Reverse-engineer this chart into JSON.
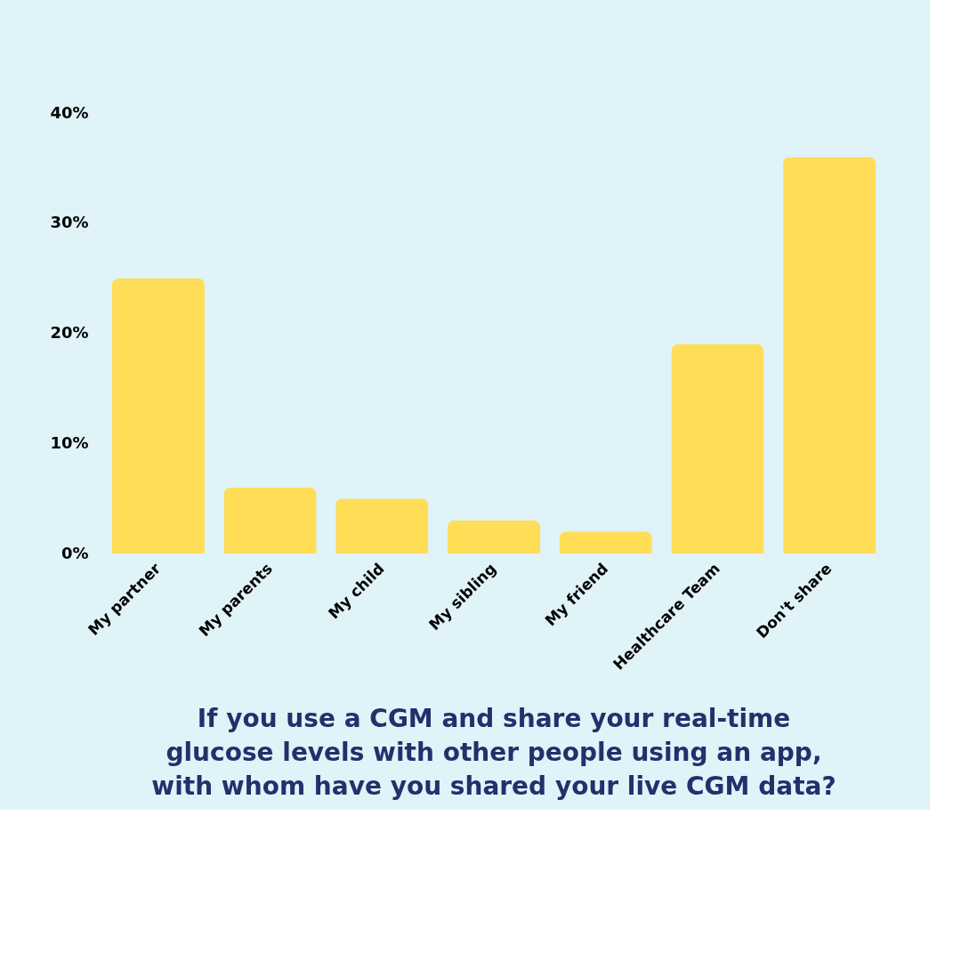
{
  "chart_data": {
    "type": "bar",
    "title": "If you use a CGM and share your real-time\nglucose levels with other people using an app,\nwith whom have you shared your live CGM data?",
    "categories": [
      "My partner",
      "My parents",
      "My child",
      "My sibling",
      "My friend",
      "Healthcare Team",
      "Don't share"
    ],
    "values": [
      25,
      6,
      5,
      3,
      2,
      19,
      36
    ],
    "color": "#ffdd57",
    "ylim": [
      0,
      40
    ],
    "yticks": [
      {
        "value": 0,
        "label": "0%"
      },
      {
        "value": 10,
        "label": "10%"
      },
      {
        "value": 20,
        "label": "20%"
      },
      {
        "value": 30,
        "label": "30%"
      },
      {
        "value": 40,
        "label": "40%"
      }
    ],
    "grid": false
  }
}
